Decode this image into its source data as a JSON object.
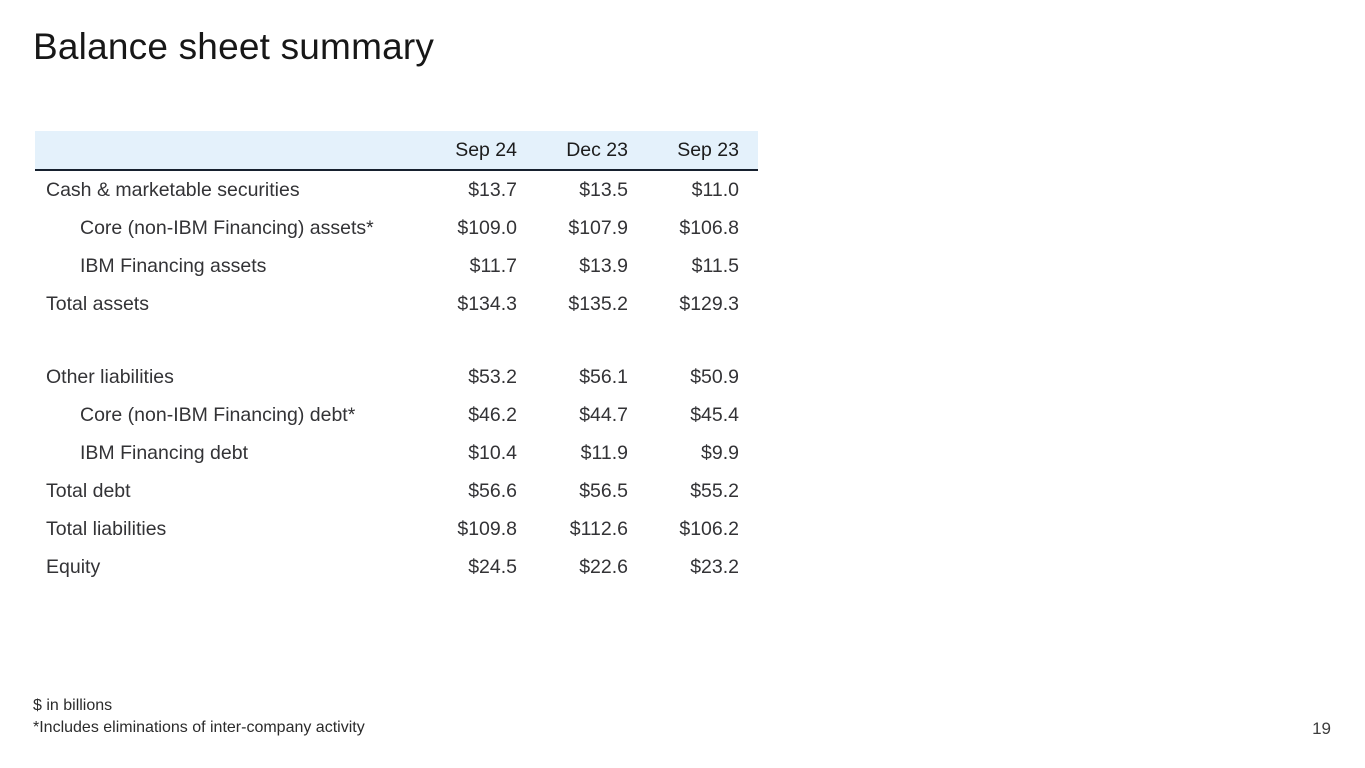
{
  "slide": {
    "title": "Balance sheet summary",
    "page_number": "19",
    "footnotes": {
      "units": "$ in billions",
      "asterisk": "*Includes eliminations of inter-company activity"
    }
  },
  "colors": {
    "header_bg": "#e4f1fb",
    "rule": "#16202e",
    "text": "#333336"
  },
  "table": {
    "columns": [
      "Sep 24",
      "Dec 23",
      "Sep 23"
    ],
    "rows": [
      {
        "label": "Cash & marketable securities",
        "indent": false,
        "spacer": false,
        "values": [
          "$13.7",
          "$13.5",
          "$11.0"
        ]
      },
      {
        "label": "Core (non-IBM Financing) assets*",
        "indent": true,
        "spacer": false,
        "values": [
          "$109.0",
          "$107.9",
          "$106.8"
        ]
      },
      {
        "label": "IBM Financing assets",
        "indent": true,
        "spacer": false,
        "values": [
          "$11.7",
          "$13.9",
          "$11.5"
        ]
      },
      {
        "label": "Total assets",
        "indent": false,
        "spacer": false,
        "values": [
          "$134.3",
          "$135.2",
          "$129.3"
        ]
      },
      {
        "label": "",
        "indent": false,
        "spacer": true,
        "values": [
          "",
          "",
          ""
        ]
      },
      {
        "label": "Other liabilities",
        "indent": false,
        "spacer": false,
        "values": [
          "$53.2",
          "$56.1",
          "$50.9"
        ]
      },
      {
        "label": "Core (non-IBM Financing) debt*",
        "indent": true,
        "spacer": false,
        "values": [
          "$46.2",
          "$44.7",
          "$45.4"
        ]
      },
      {
        "label": "IBM Financing debt",
        "indent": true,
        "spacer": false,
        "values": [
          "$10.4",
          "$11.9",
          "$9.9"
        ]
      },
      {
        "label": "Total debt",
        "indent": false,
        "spacer": false,
        "values": [
          "$56.6",
          "$56.5",
          "$55.2"
        ]
      },
      {
        "label": "Total liabilities",
        "indent": false,
        "spacer": false,
        "values": [
          "$109.8",
          "$112.6",
          "$106.2"
        ]
      },
      {
        "label": "Equity",
        "indent": false,
        "spacer": false,
        "values": [
          "$24.5",
          "$22.6",
          "$23.2"
        ]
      }
    ]
  }
}
